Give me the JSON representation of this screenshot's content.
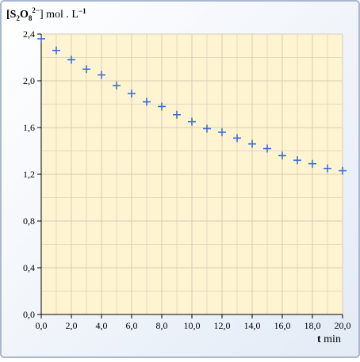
{
  "chart_data": {
    "type": "scatter",
    "y_label": [
      "[S",
      "2",
      "O",
      "8",
      "2−",
      "] mol . L",
      "−1"
    ],
    "x_label": [
      "t",
      "min"
    ],
    "x": [
      0,
      1,
      2,
      3,
      4,
      5,
      6,
      7,
      8,
      9,
      10,
      11,
      12,
      13,
      14,
      15,
      16,
      17,
      18,
      19,
      20
    ],
    "series": [
      {
        "color": "#3b6fd6",
        "values": [
          2.36,
          2.26,
          2.18,
          2.1,
          2.05,
          1.96,
          1.89,
          1.82,
          1.78,
          1.71,
          1.65,
          1.59,
          1.56,
          1.51,
          1.46,
          1.42,
          1.36,
          1.32,
          1.29,
          1.25,
          1.23
        ]
      }
    ],
    "xlim": [
      0,
      20
    ],
    "ylim": [
      0,
      2.4
    ],
    "xticks": [
      {
        "value": 0,
        "label": "0,0"
      },
      {
        "value": 2,
        "label": "2,0"
      },
      {
        "value": 4,
        "label": "4,0"
      },
      {
        "value": 6,
        "label": "6,0"
      },
      {
        "value": 8,
        "label": "8,0"
      },
      {
        "value": 10,
        "label": "10,0"
      },
      {
        "value": 12,
        "label": "12,0"
      },
      {
        "value": 14,
        "label": "14,0"
      },
      {
        "value": 16,
        "label": "16,0"
      },
      {
        "value": 18,
        "label": "18,0"
      },
      {
        "value": 20,
        "label": "20,0"
      }
    ],
    "yticks": [
      {
        "value": 0,
        "label": "0,0"
      },
      {
        "value": 0.4,
        "label": "0,4"
      },
      {
        "value": 0.8,
        "label": "0,8"
      },
      {
        "value": 1.2,
        "label": "1,2"
      },
      {
        "value": 1.6,
        "label": "1,6"
      },
      {
        "value": 2.0,
        "label": "2,0"
      },
      {
        "value": 2.4,
        "label": "2,4"
      }
    ],
    "x_minor_ticks": [
      1,
      3,
      5,
      7,
      9,
      11,
      13,
      15,
      17,
      19
    ],
    "y_minor_ticks": [
      0.2,
      0.6,
      1.0,
      1.4,
      1.8,
      2.2
    ],
    "grid": true
  }
}
